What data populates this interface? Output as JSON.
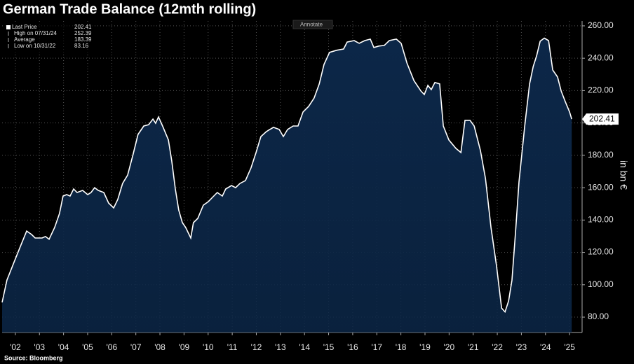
{
  "chart_data": {
    "type": "area",
    "title": "German Trade Balance (12mth rolling)",
    "y_label": "in bn €",
    "source": "Source: Bloomberg",
    "button": "Annotate",
    "legend": [
      {
        "label": "Last Price",
        "value": 202.41
      },
      {
        "label": "High on 07/31/24",
        "value": 252.39
      },
      {
        "label": "Average",
        "value": 183.39
      },
      {
        "label": "Low on 10/31/22",
        "value": 83.16
      }
    ],
    "color": "#ffffff",
    "fill": "#0c2748",
    "grid": true,
    "x": [
      2001.95,
      2002.15,
      2002.44,
      2002.73,
      2002.97,
      2003.17,
      2003.32,
      2003.61,
      2003.75,
      2003.9,
      2004.13,
      2004.33,
      2004.48,
      2004.63,
      2004.77,
      2004.92,
      2005.06,
      2005.29,
      2005.5,
      2005.64,
      2005.79,
      2005.94,
      2006.17,
      2006.37,
      2006.58,
      2006.75,
      2006.95,
      2007.16,
      2007.39,
      2007.59,
      2007.83,
      2008.03,
      2008.21,
      2008.32,
      2008.44,
      2008.61,
      2008.85,
      2008.99,
      2009.14,
      2009.28,
      2009.43,
      2009.57,
      2009.78,
      2009.89,
      2010.07,
      2010.3,
      2010.51,
      2010.68,
      2010.88,
      2011.09,
      2011.23,
      2011.47,
      2011.64,
      2011.82,
      2012.05,
      2012.28,
      2012.49,
      2012.69,
      2012.92,
      2013.21,
      2013.45,
      2013.62,
      2013.8,
      2014.03,
      2014.23,
      2014.44,
      2014.67,
      2014.9,
      2015.11,
      2015.31,
      2015.54,
      2015.83,
      2016.12,
      2016.27,
      2016.56,
      2016.77,
      2017.0,
      2017.23,
      2017.38,
      2017.58,
      2017.81,
      2018.02,
      2018.31,
      2018.51,
      2018.75,
      2019.04,
      2019.33,
      2019.47,
      2019.62,
      2019.76,
      2019.91,
      2020.11,
      2020.26,
      2020.49,
      2020.78,
      2020.99,
      2021.16,
      2021.37,
      2021.54,
      2021.8,
      2022.01,
      2022.24,
      2022.47,
      2022.68,
      2022.82,
      2022.97,
      2023.11,
      2023.26,
      2023.4,
      2023.64,
      2023.84,
      2023.99,
      2024.13,
      2024.28,
      2024.45,
      2024.63,
      2024.8,
      2025.0,
      2025.15,
      2025.32,
      2025.5,
      2025.59
    ],
    "values": [
      89.1,
      102.9,
      113.7,
      124.5,
      133.2,
      131.1,
      128.9,
      128.9,
      129.8,
      128.1,
      135.4,
      144.0,
      154.8,
      155.7,
      154.8,
      159.2,
      157.0,
      158.3,
      155.7,
      157.0,
      160.0,
      158.3,
      157.0,
      150.5,
      147.5,
      152.7,
      162.6,
      167.8,
      180.8,
      192.9,
      198.1,
      198.9,
      202.4,
      199.8,
      203.7,
      198.1,
      189.5,
      176.5,
      159.2,
      146.2,
      138.4,
      135.4,
      128.9,
      138.4,
      141.0,
      149.2,
      151.4,
      154.0,
      157.0,
      154.8,
      159.2,
      161.3,
      160.0,
      162.6,
      164.4,
      172.2,
      181.7,
      191.6,
      194.7,
      197.3,
      196.0,
      191.6,
      196.0,
      198.1,
      198.1,
      206.8,
      210.2,
      215.4,
      224.1,
      236.2,
      243.6,
      244.9,
      245.7,
      250.0,
      250.9,
      249.2,
      250.9,
      251.8,
      246.6,
      247.5,
      247.9,
      250.9,
      251.8,
      249.2,
      237.1,
      226.2,
      219.8,
      217.6,
      223.2,
      220.6,
      225.0,
      224.1,
      198.1,
      189.5,
      184.3,
      181.7,
      201.6,
      201.6,
      198.1,
      183.0,
      165.7,
      135.4,
      111.6,
      85.6,
      83.2,
      90.0,
      102.9,
      133.2,
      163.5,
      198.1,
      224.1,
      234.9,
      241.4,
      250.5,
      252.4,
      250.9,
      232.7,
      228.4,
      219.8,
      213.3,
      206.8,
      202.41
    ],
    "xlim": [
      2001.95,
      2026.02
    ],
    "ylim": [
      70.5,
      263
    ],
    "xticks": [
      {
        "value": 2002.5,
        "label": "'02"
      },
      {
        "value": 2003.5,
        "label": "'03"
      },
      {
        "value": 2004.5,
        "label": "'04"
      },
      {
        "value": 2005.5,
        "label": "'05"
      },
      {
        "value": 2006.5,
        "label": "'06"
      },
      {
        "value": 2007.5,
        "label": "'07"
      },
      {
        "value": 2008.5,
        "label": "'08"
      },
      {
        "value": 2009.5,
        "label": "'09"
      },
      {
        "value": 2010.5,
        "label": "'10"
      },
      {
        "value": 2011.5,
        "label": "'11"
      },
      {
        "value": 2012.5,
        "label": "'12"
      },
      {
        "value": 2013.5,
        "label": "'13"
      },
      {
        "value": 2014.5,
        "label": "'14"
      },
      {
        "value": 2015.5,
        "label": "'15"
      },
      {
        "value": 2016.5,
        "label": "'16"
      },
      {
        "value": 2017.5,
        "label": "'17"
      },
      {
        "value": 2018.5,
        "label": "'18"
      },
      {
        "value": 2019.5,
        "label": "'19"
      },
      {
        "value": 2020.5,
        "label": "'20"
      },
      {
        "value": 2021.5,
        "label": "'21"
      },
      {
        "value": 2022.5,
        "label": "'22"
      },
      {
        "value": 2023.5,
        "label": "'23"
      },
      {
        "value": 2024.5,
        "label": "'24"
      },
      {
        "value": 2025.5,
        "label": "'25"
      }
    ],
    "yticks": [
      {
        "value": 80,
        "label": "80.00"
      },
      {
        "value": 100,
        "label": "100.00"
      },
      {
        "value": 120,
        "label": "120.00"
      },
      {
        "value": 140,
        "label": "140.00"
      },
      {
        "value": 160,
        "label": "160.00"
      },
      {
        "value": 180,
        "label": "180.00"
      },
      {
        "value": 200,
        "label": "200.00"
      },
      {
        "value": 220,
        "label": "220.00"
      },
      {
        "value": 240,
        "label": "240.00"
      },
      {
        "value": 260,
        "label": "260.00"
      }
    ]
  }
}
